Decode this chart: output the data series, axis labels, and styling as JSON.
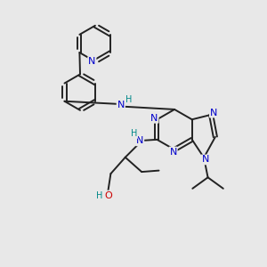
{
  "bg_color": "#e8e8e8",
  "bond_color": "#222222",
  "N_color": "#0000cc",
  "O_color": "#cc0000",
  "H_color": "#008888",
  "bond_lw": 1.4,
  "font_size": 8.0,
  "figsize": [
    3.0,
    3.0
  ],
  "dpi": 100,
  "xlim": [
    0,
    10
  ],
  "ylim": [
    0,
    10
  ]
}
